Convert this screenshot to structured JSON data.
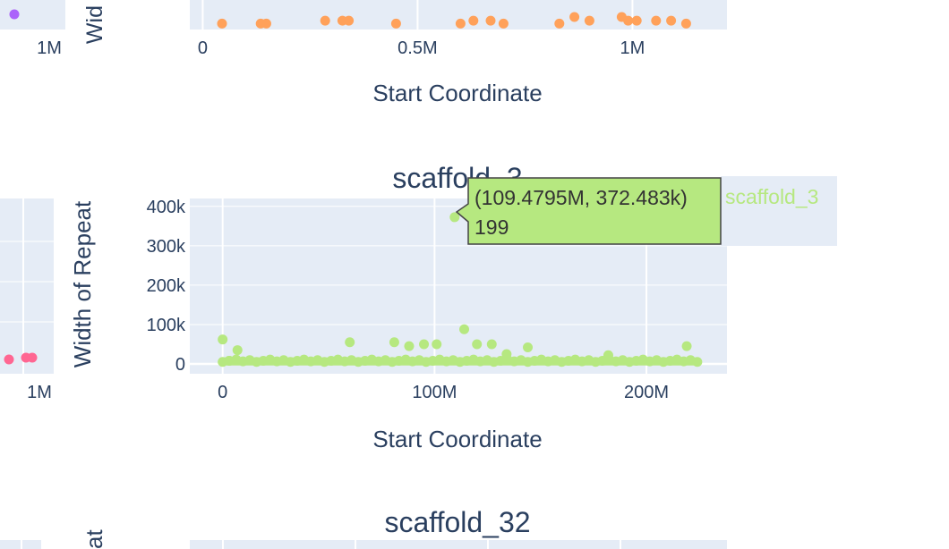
{
  "colors": {
    "plot_bg": "#e5ecf6",
    "grid": "#ffffff",
    "text": "#2a3f5f",
    "purple": "#ab63fa",
    "orange": "#ffa15a",
    "pink": "#ff6692",
    "green": "#b6e880",
    "tooltip_border": "#444444",
    "tooltip_text": "#333333"
  },
  "top_panel": {
    "xlabel": "Start Coordinate",
    "ylabel_partial": "Wid",
    "left_tick": "1M",
    "x_ticks": [
      {
        "value": 0,
        "label": "0"
      },
      {
        "value": 500000,
        "label": "0.5M"
      },
      {
        "value": 1000000,
        "label": "1M"
      }
    ]
  },
  "middle_panel": {
    "left_tick": "1M",
    "legend_label": "scaffold_3"
  },
  "bottom_panel": {
    "title": "scaffold_32",
    "ylabel_partial": "at"
  },
  "tooltip": {
    "line1": "(109.4795M, 372.483k)",
    "line2": "199"
  },
  "chart_data": [
    {
      "type": "scatter",
      "title": "",
      "xlabel": "Start Coordinate",
      "ylabel": "",
      "xlim": [
        -30000,
        1220000
      ],
      "series": [
        {
          "name": "",
          "color": "#ffa15a",
          "x": [
            45000,
            135000,
            148000,
            285000,
            325000,
            340000,
            450000,
            600000,
            630000,
            670000,
            700000,
            830000,
            865000,
            900000,
            975000,
            990000,
            1010000,
            1055000,
            1090000,
            1125000
          ],
          "y": [
            8000,
            8000,
            8000,
            12000,
            12000,
            12000,
            8000,
            8000,
            12000,
            12000,
            8000,
            8000,
            17000,
            12000,
            17000,
            12000,
            12000,
            12000,
            12000,
            8000
          ]
        }
      ]
    },
    {
      "type": "scatter",
      "title": "scaffold_3",
      "xlabel": "Start Coordinate",
      "ylabel": "Width of Repeat",
      "x_ticks": [
        {
          "value": 0,
          "label": "0"
        },
        {
          "value": 100000000,
          "label": "100M"
        },
        {
          "value": 200000000,
          "label": "200M"
        }
      ],
      "y_ticks": [
        {
          "value": 0,
          "label": "0"
        },
        {
          "value": 100000,
          "label": "100k"
        },
        {
          "value": 200000,
          "label": "200k"
        },
        {
          "value": 300000,
          "label": "300k"
        },
        {
          "value": 400000,
          "label": "400k"
        }
      ],
      "xlim": [
        -15500000,
        238000000
      ],
      "ylim": [
        -25000,
        420000
      ],
      "grid": true,
      "legend": "right",
      "series": [
        {
          "name": "scaffold_3",
          "color": "#b6e880",
          "x": [
            0,
            3000000,
            7000000,
            60000000,
            81000000,
            88000000,
            95000000,
            101000000,
            109479500,
            114000000,
            120000000,
            127000000,
            134000000,
            144000000,
            182000000,
            219000000
          ],
          "y": [
            62000,
            8000,
            35000,
            55000,
            55000,
            45000,
            50000,
            50000,
            372483,
            88000,
            50000,
            50000,
            25000,
            42000,
            22000,
            45000
          ]
        }
      ],
      "baseline_band": {
        "x_start": 0,
        "x_end": 224000000,
        "y": 5000
      }
    },
    {
      "type": "scatter",
      "title": "",
      "xlabel": "",
      "ylabel": "",
      "series": [
        {
          "name": "",
          "color": "#ab63fa",
          "points_shown": 1
        },
        {
          "name": "",
          "color": "#ff6692",
          "points_shown": 3
        }
      ]
    }
  ]
}
